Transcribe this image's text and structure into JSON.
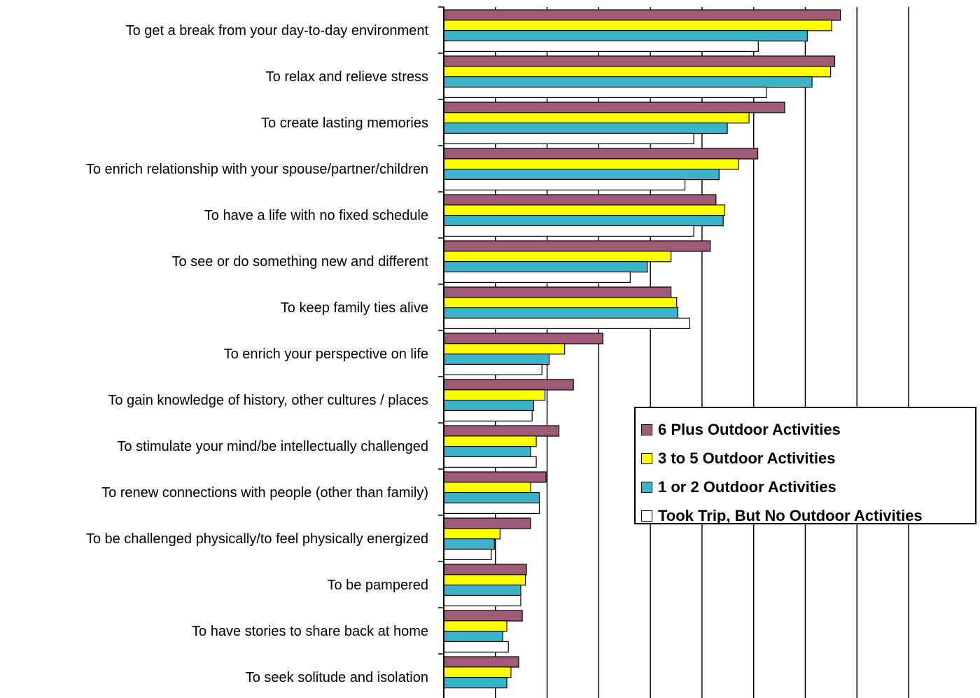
{
  "chart_data": {
    "type": "bar",
    "orientation": "horizontal",
    "categories": [
      "To get a break from your day-to-day environment",
      "To relax and relieve stress",
      "To create lasting memories",
      "To enrich relationship with your spouse/partner/children",
      "To have a life with no fixed schedule",
      "To see or do something new and different",
      "To keep family ties alive",
      "To enrich your perspective on life",
      "To gain knowledge of history, other cultures / places",
      "To stimulate your mind/be intellectually challenged",
      "To renew connections with people (other than family)",
      "To be challenged physically/to feel physically energized",
      "To be pampered",
      "To have stories to share back at home",
      "To seek solitude and isolation"
    ],
    "series": [
      {
        "name": "6 Plus Outdoor Activities",
        "color": "#9E5A77",
        "values": [
          76.8,
          75.7,
          66.0,
          60.8,
          52.7,
          51.6,
          44.0,
          30.8,
          25.1,
          22.3,
          19.8,
          16.8,
          16.0,
          15.2,
          14.5
        ]
      },
      {
        "name": "3 to 5 Outdoor Activities",
        "color": "#FFFF00",
        "values": [
          75.1,
          74.9,
          59.1,
          57.1,
          54.4,
          44.0,
          45.1,
          23.4,
          19.6,
          17.9,
          16.8,
          10.9,
          15.8,
          12.2,
          13.0
        ]
      },
      {
        "name": "1 or 2 Outdoor Activities",
        "color": "#3CB3C9",
        "values": [
          70.4,
          71.3,
          54.9,
          53.3,
          54.1,
          39.4,
          45.3,
          20.4,
          17.4,
          16.8,
          18.5,
          9.8,
          14.9,
          11.4,
          12.2
        ]
      },
      {
        "name": "Took Trip, But No Outdoor Activities",
        "color": "#FFFFFF",
        "values": [
          60.9,
          62.5,
          48.4,
          46.7,
          48.4,
          36.1,
          47.6,
          19.0,
          17.1,
          17.9,
          18.5,
          9.2,
          14.9,
          12.5,
          0
        ]
      }
    ],
    "xlim": [
      0,
      90
    ],
    "x_gridline_step": 10,
    "grid": true,
    "legend_position": "right-middle",
    "title": "",
    "xlabel": "",
    "ylabel": ""
  }
}
